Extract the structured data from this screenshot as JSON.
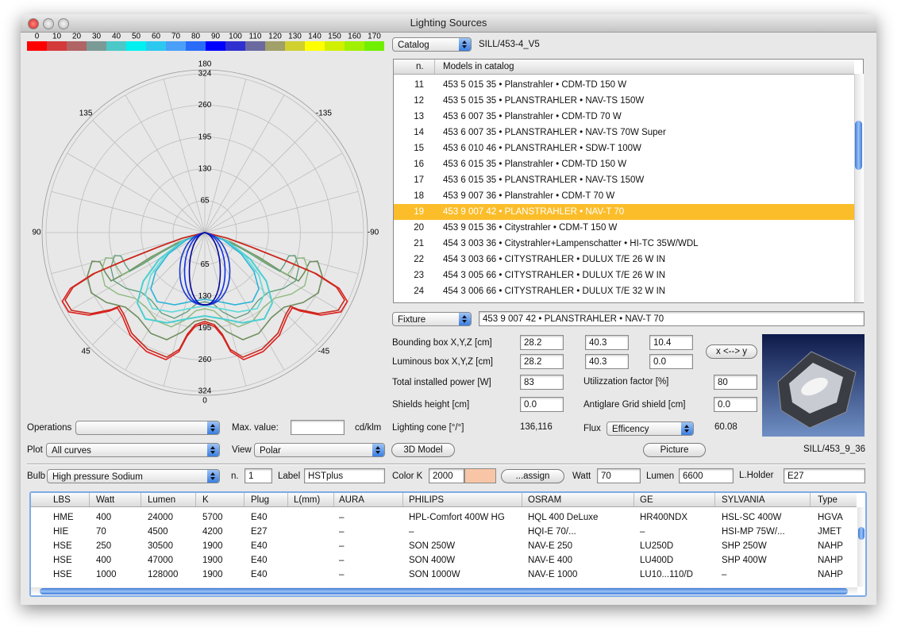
{
  "window": {
    "title": "Lighting Sources"
  },
  "color_scale": {
    "labels": [
      0,
      10,
      20,
      30,
      40,
      50,
      60,
      70,
      80,
      90,
      100,
      110,
      120,
      130,
      140,
      150,
      160,
      170
    ],
    "colors": [
      "#ff0000",
      "#d43a3a",
      "#b06464",
      "#7a9a96",
      "#4cc8c8",
      "#00f0f0",
      "#2cc8f0",
      "#4aa0f8",
      "#2a6cf8",
      "#0000ff",
      "#3030d0",
      "#6a6aa0",
      "#a0a068",
      "#d0d030",
      "#ffff00",
      "#d0f000",
      "#a0f000",
      "#70f000"
    ]
  },
  "polar": {
    "angle_labels": [
      180,
      135,
      -135,
      90,
      -90,
      45,
      -45,
      0
    ],
    "radial_ticks": [
      65,
      130,
      195,
      260,
      324
    ]
  },
  "catalog": {
    "selector": "Catalog",
    "name": "SILL/453-4_V5",
    "columns": [
      "n.",
      "Models in catalog"
    ],
    "selected": 19,
    "rows": [
      {
        "n": 11,
        "model": "453 5 015 35 • Planstrahler • CDM-TD 150 W"
      },
      {
        "n": 12,
        "model": "453 5 015 35 • PLANSTRAHLER • NAV-TS 150W"
      },
      {
        "n": 13,
        "model": "453 6 007 35 • Planstrahler • CDM-TD 70 W"
      },
      {
        "n": 14,
        "model": "453 6 007 35 • PLANSTRAHLER • NAV-TS 70W Super"
      },
      {
        "n": 15,
        "model": "453 6 010 46 • PLANSTRAHLER • SDW-T 100W"
      },
      {
        "n": 16,
        "model": "453 6 015 35 • Planstrahler • CDM-TD 150 W"
      },
      {
        "n": 17,
        "model": "453 6 015 35 • PLANSTRAHLER • NAV-TS 150W"
      },
      {
        "n": 18,
        "model": "453 9 007 36 • Planstrahler • CDM-T 70 W"
      },
      {
        "n": 19,
        "model": "453 9 007 42 • PLANSTRAHLER • NAV-T 70"
      },
      {
        "n": 20,
        "model": "453 9 015 36 • Citystrahler • CDM-T 150 W"
      },
      {
        "n": 21,
        "model": "454 3 003 36 • Citystrahler+Lampenschatter • HI-TC 35W/WDL"
      },
      {
        "n": 22,
        "model": "454 3 003 66 • CITYSTRAHLER • DULUX T/E 26 W IN"
      },
      {
        "n": 23,
        "model": "454 3 005 66 • CITYSTRAHLER • DULUX T/E 26 W IN"
      },
      {
        "n": 24,
        "model": "454 3 006 66 • CITYSTRAHLER • DULUX T/E 32 W IN"
      }
    ]
  },
  "fixture": {
    "selector": "Fixture",
    "value": "453 9 007 42 • PLANSTRAHLER • NAV-T 70"
  },
  "form": {
    "bounding_box": {
      "label": "Bounding box X,Y,Z [cm]",
      "values": [
        "28.2",
        "40.3",
        "10.4"
      ]
    },
    "luminous_box": {
      "label": "Luminous box X,Y,Z [cm]",
      "values": [
        "28.2",
        "40.3",
        "0.0"
      ]
    },
    "total_power": {
      "label": "Total installed power [W]",
      "value": "83"
    },
    "utilization": {
      "label": "Utilizzation factor [%]",
      "value": "80"
    },
    "shields_height": {
      "label": "Shields height [cm]",
      "value": "0.0"
    },
    "antiglare": {
      "label": "Antiglare Grid shield [cm]",
      "value": "0.0"
    },
    "lighting_cone": {
      "label": "Lighting cone [°/°]",
      "value": "136,116"
    },
    "flux": {
      "label": "Flux",
      "selector": "Efficency",
      "value": "60.08"
    },
    "swap_button": "x <--> y",
    "model_button": "3D Model",
    "picture_button": "Picture",
    "picture_code": "SILL/453_9_36"
  },
  "controls": {
    "operations": "Operations",
    "max_value": "Max. value:",
    "unit": "cd/klm",
    "plot": {
      "label": "Plot",
      "value": "All curves"
    },
    "view": {
      "label": "View",
      "value": "Polar"
    }
  },
  "bulb": {
    "label": "Bulb",
    "type": "High pressure Sodium",
    "n_label": "n.",
    "n": "1",
    "label_label": "Label",
    "label_value": "HSTplus",
    "color_label": "Color K",
    "color_k": "2000",
    "swatch_color": "#f8c6a6",
    "assign": "...assign",
    "watt_label": "Watt",
    "watt": "70",
    "lumen_label": "Lumen",
    "lumen": "6600",
    "holder_label": "L.Holder",
    "holder": "E27"
  },
  "lamps": {
    "columns": [
      "LBS",
      "Watt",
      "Lumen",
      "K",
      "Plug",
      "L(mm)",
      "AURA",
      "PHILIPS",
      "OSRAM",
      "GE",
      "SYLVANIA",
      "Type"
    ],
    "rows": [
      [
        "HME",
        "400",
        "24000",
        "5700",
        "E40",
        null,
        "–",
        "HPL-Comfort 400W HG",
        "HQL 400 DeLuxe",
        "HR400NDX",
        "HSL-SC 400W",
        "HGVA"
      ],
      [
        "HIE",
        "70",
        "4500",
        "4200",
        "E27",
        null,
        "–",
        "–",
        "HQI-E 70/...",
        "–",
        "HSI-MP 75W/...",
        "JMET"
      ],
      [
        "HSE",
        "250",
        "30500",
        "1900",
        "E40",
        null,
        "–",
        "SON 250W",
        "NAV-E 250",
        "LU250D",
        "SHP 250W",
        "NAHP"
      ],
      [
        "HSE",
        "400",
        "47000",
        "1900",
        "E40",
        null,
        "–",
        "SON 400W",
        "NAV-E 400",
        "LU400D",
        "SHP 400W",
        "NAHP"
      ],
      [
        "HSE",
        "1000",
        "128000",
        "1900",
        "E40",
        null,
        "–",
        "SON 1000W",
        "NAV-E 1000",
        "LU10...110/D",
        "–",
        "NAHP"
      ]
    ]
  }
}
